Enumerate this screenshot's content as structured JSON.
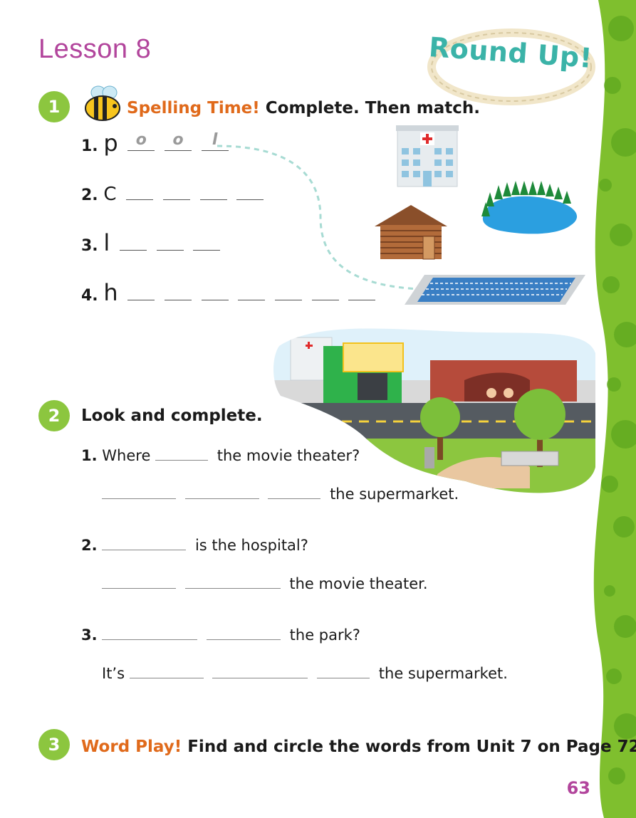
{
  "header": {
    "lesson_title": "Lesson 8",
    "round_up": "Round Up!"
  },
  "section1": {
    "number": "1",
    "label": "Spelling Time!",
    "instruction": "Complete. Then match.",
    "items": [
      {
        "num": "1.",
        "letter": "p",
        "traced": [
          "o",
          "o",
          "l"
        ]
      },
      {
        "num": "2.",
        "letter": "C",
        "blanks": 4
      },
      {
        "num": "3.",
        "letter": "l",
        "blanks": 3
      },
      {
        "num": "4.",
        "letter": "h",
        "blanks": 7
      }
    ],
    "pictures": [
      "hospital",
      "lake",
      "cabin",
      "pool"
    ]
  },
  "section2": {
    "number": "2",
    "instruction": "Look and complete.",
    "q1": {
      "num": "1.",
      "pre": "Where",
      "post": "the movie theater?",
      "answer_end": "the supermarket."
    },
    "q2": {
      "num": "2.",
      "post": "is the hospital?",
      "answer_end": "the movie theater."
    },
    "q3": {
      "num": "3.",
      "post": "the park?",
      "answer_start": "It’s",
      "answer_end": "the supermarket."
    }
  },
  "section3": {
    "number": "3",
    "label": "Word Play!",
    "instruction": "Find and circle the words from Unit 7 on Page 72."
  },
  "page_number": "63",
  "colors": {
    "green": "#8cc63f",
    "purple": "#b2459c",
    "orange": "#e06a1b",
    "teal": "#3bb3a8"
  }
}
